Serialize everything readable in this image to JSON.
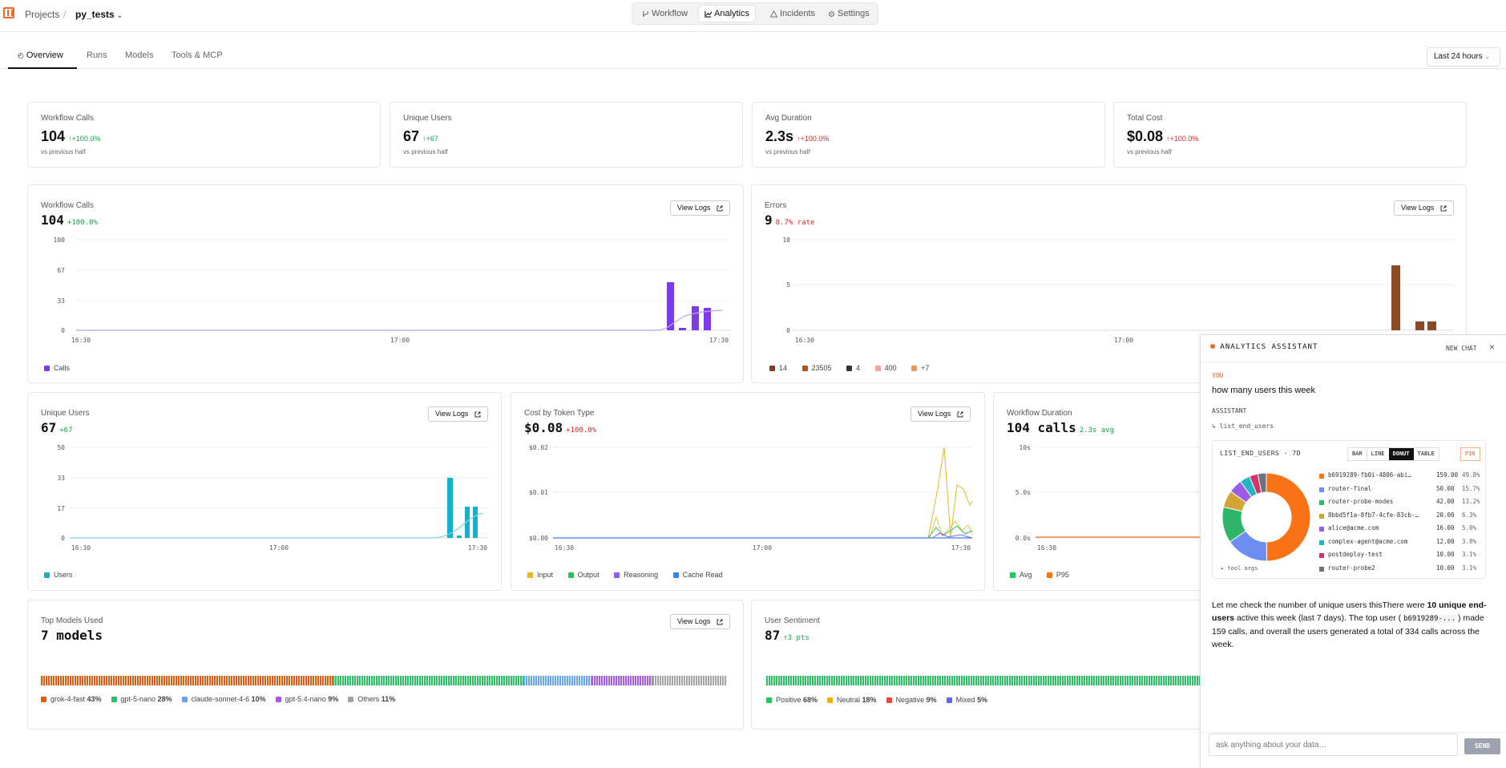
{
  "topbar": {
    "projects": "Projects",
    "sep": "/",
    "project": "py_tests",
    "nav": [
      "Workflow",
      "Analytics",
      "Incidents",
      "Settings"
    ]
  },
  "tabs": [
    "Overview",
    "Runs",
    "Models",
    "Tools & MCP"
  ],
  "time_range": "Last 24 hours",
  "stats": [
    {
      "label": "Workflow Calls",
      "value": "104",
      "delta": "↑+100.0%",
      "sub": "vs previous half"
    },
    {
      "label": "Unique Users",
      "value": "67",
      "delta": "↑+67",
      "sub": "vs previous half"
    },
    {
      "label": "Avg Duration",
      "value": "2.3s",
      "delta": "↑+100.0%",
      "sub": "vs previous half"
    },
    {
      "label": "Total Cost",
      "value": "$0.08",
      "delta": "↑+100.0%",
      "sub": "vs previous half"
    }
  ],
  "view_logs": "View Logs",
  "wf": {
    "title": "Workflow Calls",
    "value": "104",
    "delta": "+100.0%",
    "yticks": [
      "100",
      "67",
      "33",
      "0"
    ],
    "xticks": [
      "16:30",
      "17:00",
      "17:30"
    ],
    "legend": "Calls",
    "color": "#7c3aed"
  },
  "err": {
    "title": "Errors",
    "value": "9",
    "delta": "8.7% rate",
    "yticks": [
      "10",
      "5",
      "0"
    ],
    "xticks": [
      "16:30",
      "17:00"
    ],
    "legend": [
      "14",
      "23505",
      "4",
      "400",
      "+7"
    ],
    "colors": [
      "#7c3f22",
      "#b4501f",
      "#333333",
      "#f3a3a3",
      "#e89a4c"
    ]
  },
  "uu": {
    "title": "Unique Users",
    "value": "67",
    "delta": "+67",
    "yticks": [
      "50",
      "33",
      "17",
      "0"
    ],
    "xticks": [
      "16:30",
      "17:00",
      "17:30"
    ],
    "legend": "Users",
    "color": "#16b0cc"
  },
  "cost": {
    "title": "Cost by Token Type",
    "value": "$0.08",
    "delta": "+100.0%",
    "yticks": [
      "$0.02",
      "$0.01",
      "$0.00"
    ],
    "xticks": [
      "16:30",
      "17:00",
      "17:30"
    ],
    "legend": [
      "Input",
      "Output",
      "Reasoning",
      "Cache Read"
    ],
    "colors": [
      "#e5b922",
      "#22c55e",
      "#8b5cf6",
      "#3b82f6"
    ]
  },
  "dur": {
    "title": "Workflow Duration",
    "value": "104 calls",
    "delta": "2.3s avg",
    "yticks": [
      "10s",
      "5.0s",
      "0.0s"
    ],
    "xticks": [
      "16:30"
    ],
    "legend": [
      "Avg",
      "P95"
    ],
    "colors": [
      "#22c55e",
      "#f97316"
    ]
  },
  "models": {
    "title": "Top Models Used",
    "value": "7 models",
    "legend": [
      {
        "name": "grok-4-fast",
        "pct": "43%",
        "color": "#ea580c"
      },
      {
        "name": "gpt-5-nano",
        "pct": "28%",
        "color": "#22c55e"
      },
      {
        "name": "claude-sonnet-4-6",
        "pct": "10%",
        "color": "#60a5fa"
      },
      {
        "name": "gpt-5.4-nano",
        "pct": "9%",
        "color": "#a855f7"
      },
      {
        "name": "Others",
        "pct": "11%",
        "color": "#a3a3a3"
      }
    ]
  },
  "sentiment": {
    "title": "User Sentiment",
    "value": "87",
    "delta": "↑3 pts",
    "legend": [
      {
        "name": "Positive",
        "pct": "68%",
        "color": "#22c55e"
      },
      {
        "name": "Neutral",
        "pct": "18%",
        "color": "#eab308"
      },
      {
        "name": "Negative",
        "pct": "9%",
        "color": "#ef4444"
      },
      {
        "name": "Mixed",
        "pct": "5%",
        "color": "#6366f1"
      }
    ]
  },
  "assistant": {
    "header": "ANALYTICS ASSISTANT",
    "new_chat": "NEW CHAT",
    "you_label": "YOU",
    "question": "how many users this week",
    "asst_label": "ASSISTANT",
    "tool": "↳ list_end_users",
    "widget_title": "LIST_END_USERS · 7D",
    "modes": [
      "BAR",
      "LINE",
      "DONUT",
      "TABLE"
    ],
    "pin": "PIN",
    "rows": [
      {
        "name": "b6919289-fb0i-4806-abi…",
        "val": "159.00",
        "pct": "49.8%",
        "color": "#f97316"
      },
      {
        "name": "router-final",
        "val": "50.00",
        "pct": "15.7%",
        "color": "#6b8ef0"
      },
      {
        "name": "router-probe-modes",
        "val": "42.00",
        "pct": "13.2%",
        "color": "#2fb56a"
      },
      {
        "name": "8bbd5f1a-8fb7-4cfe-83cb-…",
        "val": "20.00",
        "pct": "6.3%",
        "color": "#d4a437"
      },
      {
        "name": "alice@acme.com",
        "val": "16.00",
        "pct": "5.0%",
        "color": "#9b5de5"
      },
      {
        "name": "complex-agent@acme.com",
        "val": "12.00",
        "pct": "3.8%",
        "color": "#22b5c6"
      },
      {
        "name": "postdeploy-test",
        "val": "10.00",
        "pct": "3.1%",
        "color": "#d6336c"
      },
      {
        "name": "router-probe2",
        "val": "10.00",
        "pct": "3.1%",
        "color": "#6b7280"
      }
    ],
    "tool_args": "▸ tool args",
    "answer_a": "Let me check the number of unique users thisThere were ",
    "answer_b": "10 unique end-users",
    "answer_c": " active this week (last 7 days). The top user ( ",
    "answer_d": "b6919289-...",
    "answer_e": " ) made 159 calls, and overall the users generated a total of 334 calls across the week.",
    "placeholder": "ask anything about your data…",
    "send": "SEND"
  }
}
